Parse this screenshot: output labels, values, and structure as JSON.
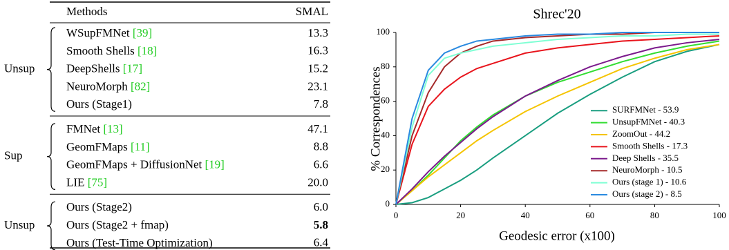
{
  "table": {
    "header": [
      "Methods",
      "SMAL"
    ],
    "groups": [
      {
        "label": "Unsup",
        "rows": [
          {
            "method": "WSupFMNet",
            "ref": "[39]",
            "value": "13.3"
          },
          {
            "method": "Smooth Shells",
            "ref": "[18]",
            "value": "16.3"
          },
          {
            "method": "DeepShells",
            "ref": "[17]",
            "value": "15.2"
          },
          {
            "method": "NeuroMorph",
            "ref": "[82]",
            "value": "23.1"
          },
          {
            "method": "Ours (Stage1)",
            "value": "7.8"
          }
        ]
      },
      {
        "label": "Sup",
        "rows": [
          {
            "method": "FMNet",
            "ref": "[13]",
            "value": "47.1"
          },
          {
            "method": "GeomFMaps",
            "ref": "[11]",
            "value": "8.8"
          },
          {
            "method": "GeomFMaps + DiffusionNet",
            "ref": "[19]",
            "value": "6.6"
          },
          {
            "method": "LIE",
            "ref": "[75]",
            "value": "20.0"
          }
        ]
      },
      {
        "label": "Unsup",
        "rows": [
          {
            "method": "Ours (Stage2)",
            "value": "6.0"
          },
          {
            "method": "Ours (Stage2 + fmap)",
            "value": "5.8",
            "bold": true
          },
          {
            "method": "Ours (Test-Time Optimization)",
            "value": "6.4"
          }
        ]
      }
    ]
  },
  "chart_data": {
    "type": "line",
    "title": "Shrec'20",
    "xlabel": "Geodesic error (x100)",
    "ylabel": "% Correspondences",
    "x": [
      0,
      5,
      10,
      15,
      20,
      25,
      30,
      40,
      50,
      60,
      70,
      80,
      90,
      100
    ],
    "series": [
      {
        "name": "SURFMNet - 53.9",
        "color": "#1a9e80",
        "values": [
          0,
          1,
          4,
          9,
          14,
          20,
          27,
          40,
          53,
          64,
          74,
          83,
          89,
          93
        ]
      },
      {
        "name": "UnsupFMNet - 40.3",
        "color": "#33dd33",
        "values": [
          0,
          8,
          17,
          27,
          37,
          45,
          52,
          63,
          71,
          77,
          83,
          88,
          92,
          95
        ]
      },
      {
        "name": "ZoomOut - 44.2",
        "color": "#f5c400",
        "values": [
          0,
          8,
          16,
          23,
          30,
          37,
          43,
          54,
          63,
          71,
          79,
          85,
          90,
          93
        ]
      },
      {
        "name": "Smooth Shells - 17.3",
        "color": "#e8141c",
        "values": [
          0,
          35,
          57,
          67,
          74,
          79,
          82,
          88,
          91,
          93,
          95,
          96,
          97,
          98
        ]
      },
      {
        "name": "Deep Shells - 35.5",
        "color": "#7b1a8c",
        "values": [
          0,
          9,
          19,
          28,
          36,
          44,
          51,
          63,
          72,
          80,
          86,
          91,
          94,
          96
        ]
      },
      {
        "name": "NeuroMorph - 10.5",
        "color": "#a52a2a",
        "values": [
          0,
          40,
          65,
          80,
          88,
          92,
          95,
          97,
          98,
          99,
          99,
          100,
          100,
          100
        ]
      },
      {
        "name": "Ours (stage 1) - 10.6",
        "color": "#7fffd4",
        "values": [
          0,
          45,
          75,
          85,
          88,
          90,
          92,
          94,
          96,
          97,
          98,
          98,
          99,
          99
        ]
      },
      {
        "name": "Ours (stage 2) - 8.5",
        "color": "#2a8ae0",
        "values": [
          0,
          50,
          78,
          88,
          92,
          95,
          96,
          98,
          99,
          99,
          100,
          100,
          100,
          100
        ]
      }
    ],
    "xlim": [
      0,
      100
    ],
    "ylim": [
      0,
      100
    ],
    "xticks": [
      0,
      20,
      40,
      60,
      80,
      100
    ],
    "yticks": [
      0,
      20,
      40,
      60,
      80,
      100
    ],
    "legend": "lower right"
  }
}
